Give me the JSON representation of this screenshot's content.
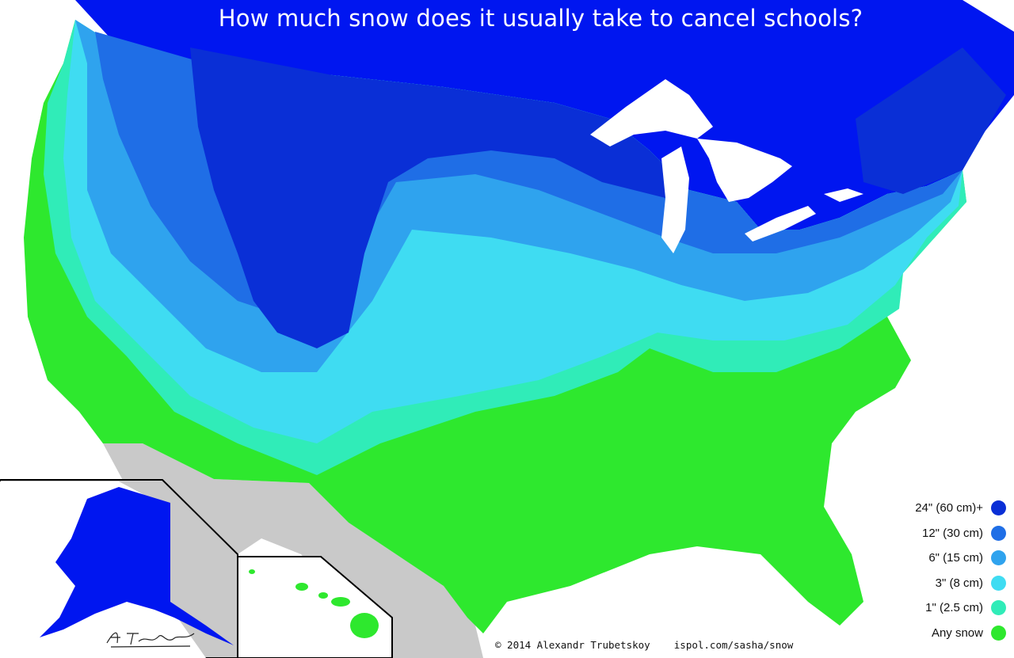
{
  "title": "How much snow does it usually take to cancel schools?",
  "legend": [
    {
      "label": "24\" (60 cm)+",
      "color": "#0a2fd6"
    },
    {
      "label": "12\" (30 cm)",
      "color": "#1f6ee6"
    },
    {
      "label": "6\" (15 cm)",
      "color": "#2fa3ee"
    },
    {
      "label": "3\" (8 cm)",
      "color": "#3fdcf2"
    },
    {
      "label": "1\" (2.5 cm)",
      "color": "#30ecb8"
    },
    {
      "label": "Any snow",
      "color": "#2ee82e"
    }
  ],
  "credit": "© 2014 Alexandr Trubetskoy    ispol.com/sasha/snow",
  "colors": {
    "canada": "#0016f0",
    "ocean": "#ffffff",
    "mexico": "#c9c9c9",
    "lakes": "#ffffff",
    "border": "#0a0a30"
  }
}
